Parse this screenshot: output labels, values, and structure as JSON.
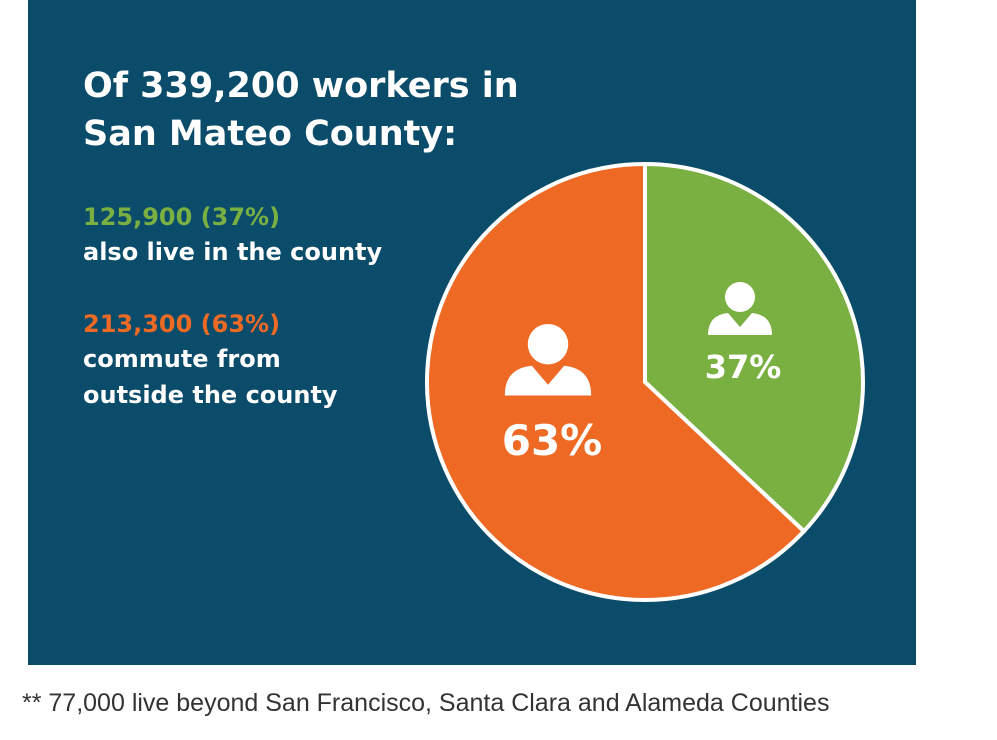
{
  "chart_data": {
    "type": "pie",
    "title_lines": [
      "Of 339,200 workers in",
      "San Mateo County:"
    ],
    "categories": [
      "125,900 (37%)",
      "213,300 (63%)"
    ],
    "category_notes": [
      [
        "also live in the county"
      ],
      [
        "commute from",
        "outside the county"
      ]
    ],
    "values": [
      37,
      63
    ],
    "value_labels": [
      "37%",
      "63%"
    ],
    "colors": [
      "#7ab042",
      "#ee6a24"
    ],
    "background": "#0b4c6b"
  },
  "footnote": "** 77,000 live beyond San Francisco, Santa Clara and Alameda Counties"
}
